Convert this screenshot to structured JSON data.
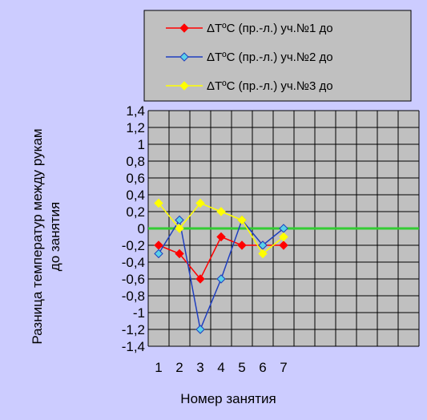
{
  "chart_data": {
    "type": "line",
    "title": "",
    "xlabel": "Номер занятия",
    "ylabel_lines": [
      "Разница температур между рукам",
      "до  занятия"
    ],
    "x": [
      1,
      2,
      3,
      4,
      5,
      6,
      7
    ],
    "x_tick_labels": [
      "1",
      "2",
      "3",
      "4",
      "5",
      "6",
      "7"
    ],
    "x_axis_categories": 13,
    "ylim": [
      -1.4,
      1.4
    ],
    "y_tick_labels": [
      "1,4",
      "1,2",
      "1",
      "0,8",
      "0,6",
      "0,4",
      "0,2",
      "0",
      "-0,2",
      "-0,4",
      "-0,6",
      "-0,8",
      "-1",
      "-1,2",
      "-1,4"
    ],
    "y_tick_values": [
      1.4,
      1.2,
      1,
      0.8,
      0.6,
      0.4,
      0.2,
      0,
      -0.2,
      -0.4,
      -0.6,
      -0.8,
      -1,
      -1.2,
      -1.4
    ],
    "grid": true,
    "legend_position": "top",
    "zero_line_color": "#33cc33",
    "plot_background": "#c0c0c0",
    "chart_background": "#ccccff",
    "series": [
      {
        "name": "ΔТºС (пр.-л.) уч.№1 до",
        "color": "#ff0000",
        "marker": "diamond",
        "values": [
          -0.2,
          -0.3,
          -0.6,
          -0.1,
          -0.2,
          -0.2,
          -0.2
        ]
      },
      {
        "name": "ΔТºС (пр.-л.) уч.№2 до",
        "color": "#1f3fbf",
        "marker_fill": "#5bd1e8",
        "marker": "diamond",
        "values": [
          -0.3,
          0.1,
          -1.2,
          -0.6,
          0.1,
          -0.2,
          0.0
        ]
      },
      {
        "name": "ΔТºС (пр.-л.) уч.№3 до",
        "color": "#ffff00",
        "marker": "diamond",
        "values": [
          0.3,
          0.0,
          0.3,
          0.2,
          0.1,
          -0.3,
          -0.1
        ]
      }
    ]
  }
}
